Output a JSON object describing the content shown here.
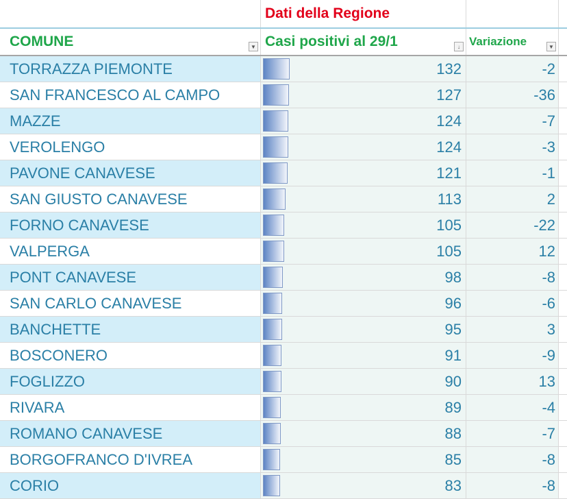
{
  "header": {
    "group_label": "Dati della Regione",
    "columns": [
      "COMUNE",
      "Casi positivi al 29/1",
      "Variazione"
    ],
    "filter_icons": [
      "dropdown-filter-icon",
      "sort-descending-filter-icon",
      "dropdown-filter-icon"
    ]
  },
  "colors": {
    "header_green": "#1fa64a",
    "group_red": "#e2001a",
    "text_blue": "#2a7fa6",
    "band_blue": "#d3eef9",
    "data_bar": "#5d84c4"
  },
  "rows": [
    {
      "comune": "TORRAZZA PIEMONTE",
      "casi": 132,
      "variazione": -2
    },
    {
      "comune": "SAN FRANCESCO AL CAMPO",
      "casi": 127,
      "variazione": -36
    },
    {
      "comune": "MAZZE",
      "casi": 124,
      "variazione": -7
    },
    {
      "comune": "VEROLENGO",
      "casi": 124,
      "variazione": -3
    },
    {
      "comune": "PAVONE CANAVESE",
      "casi": 121,
      "variazione": -1
    },
    {
      "comune": "SAN GIUSTO CANAVESE",
      "casi": 113,
      "variazione": 2
    },
    {
      "comune": "FORNO CANAVESE",
      "casi": 105,
      "variazione": -22
    },
    {
      "comune": "VALPERGA",
      "casi": 105,
      "variazione": 12
    },
    {
      "comune": "PONT CANAVESE",
      "casi": 98,
      "variazione": -8
    },
    {
      "comune": "SAN CARLO CANAVESE",
      "casi": 96,
      "variazione": -6
    },
    {
      "comune": "BANCHETTE",
      "casi": 95,
      "variazione": 3
    },
    {
      "comune": "BOSCONERO",
      "casi": 91,
      "variazione": -9
    },
    {
      "comune": "FOGLIZZO",
      "casi": 90,
      "variazione": 13
    },
    {
      "comune": "RIVARA",
      "casi": 89,
      "variazione": -4
    },
    {
      "comune": "ROMANO CANAVESE",
      "casi": 88,
      "variazione": -7
    },
    {
      "comune": "BORGOFRANCO D'IVREA",
      "casi": 85,
      "variazione": -8
    },
    {
      "comune": "CORIO",
      "casi": 83,
      "variazione": -8
    }
  ]
}
